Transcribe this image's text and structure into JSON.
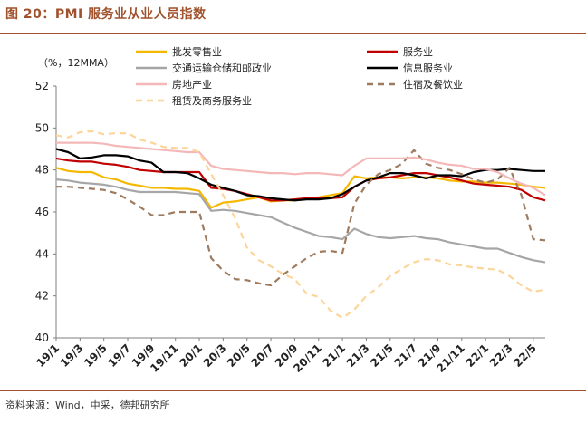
{
  "title": "图 20：PMI 服务业从业人员指数",
  "source": "资料来源：Wind，中采，德邦研究所",
  "chart_data": {
    "type": "line",
    "unit_label": "（%，12MMA）",
    "ylim": [
      40,
      52
    ],
    "yticks": [
      40,
      42,
      44,
      46,
      48,
      50,
      52
    ],
    "x_tick_labels": [
      "19/1",
      "19/3",
      "19/5",
      "19/7",
      "19/9",
      "19/11",
      "20/1",
      "20/3",
      "20/5",
      "20/7",
      "20/9",
      "20/11",
      "21/1",
      "21/3",
      "21/5",
      "21/7",
      "21/9",
      "21/11",
      "22/1",
      "22/3",
      "22/5"
    ],
    "x": [
      "19/1",
      "19/2",
      "19/3",
      "19/4",
      "19/5",
      "19/6",
      "19/7",
      "19/8",
      "19/9",
      "19/10",
      "19/11",
      "19/12",
      "20/1",
      "20/2",
      "20/3",
      "20/4",
      "20/5",
      "20/6",
      "20/7",
      "20/8",
      "20/9",
      "20/10",
      "20/11",
      "20/12",
      "21/1",
      "21/2",
      "21/3",
      "21/4",
      "21/5",
      "21/6",
      "21/7",
      "21/8",
      "21/9",
      "21/10",
      "21/11",
      "21/12",
      "22/1",
      "22/2",
      "22/3",
      "22/4",
      "22/5",
      "22/6"
    ],
    "series": [
      {
        "name": "批发零售业",
        "color": "#f5b800",
        "dash": "solid",
        "values": [
          48.1,
          47.95,
          47.9,
          47.9,
          47.65,
          47.55,
          47.35,
          47.25,
          47.15,
          47.15,
          47.1,
          47.1,
          47.0,
          46.2,
          46.45,
          46.5,
          46.6,
          46.7,
          46.5,
          46.55,
          46.55,
          46.65,
          46.7,
          46.8,
          46.9,
          47.7,
          47.6,
          47.65,
          47.65,
          47.6,
          47.65,
          47.65,
          47.6,
          47.5,
          47.45,
          47.45,
          47.4,
          47.4,
          47.35,
          47.3,
          47.2,
          47.15
        ]
      },
      {
        "name": "服务业",
        "color": "#c00000",
        "dash": "solid",
        "values": [
          48.55,
          48.45,
          48.4,
          48.4,
          48.3,
          48.25,
          48.15,
          48.0,
          47.95,
          47.9,
          47.9,
          47.9,
          47.9,
          47.15,
          47.1,
          47.0,
          46.85,
          46.7,
          46.55,
          46.55,
          46.6,
          46.65,
          46.65,
          46.65,
          46.7,
          47.2,
          47.5,
          47.6,
          47.65,
          47.75,
          47.85,
          47.85,
          47.75,
          47.65,
          47.5,
          47.35,
          47.3,
          47.25,
          47.2,
          47.05,
          46.7,
          46.55
        ]
      },
      {
        "name": "交通运输仓储和邮政业",
        "color": "#a6a6a6",
        "dash": "solid",
        "values": [
          47.55,
          47.5,
          47.4,
          47.35,
          47.3,
          47.2,
          47.05,
          46.95,
          46.95,
          46.95,
          46.95,
          46.9,
          46.85,
          46.05,
          46.1,
          46.05,
          45.95,
          45.85,
          45.75,
          45.5,
          45.25,
          45.05,
          44.85,
          44.8,
          44.7,
          45.2,
          44.95,
          44.8,
          44.75,
          44.8,
          44.85,
          44.75,
          44.7,
          44.55,
          44.45,
          44.35,
          44.25,
          44.25,
          44.05,
          43.85,
          43.7,
          43.6
        ]
      },
      {
        "name": "信息服务业",
        "color": "#000000",
        "dash": "solid",
        "values": [
          49.0,
          48.85,
          48.55,
          48.6,
          48.7,
          48.7,
          48.65,
          48.45,
          48.35,
          47.9,
          47.9,
          47.85,
          47.6,
          47.3,
          47.15,
          47.0,
          46.8,
          46.75,
          46.65,
          46.6,
          46.55,
          46.6,
          46.6,
          46.65,
          46.85,
          47.2,
          47.5,
          47.65,
          47.85,
          47.85,
          47.75,
          47.6,
          47.75,
          47.75,
          47.7,
          47.9,
          48.0,
          48.0,
          48.05,
          48.0,
          47.95,
          47.95
        ]
      },
      {
        "name": "住宿及餐饮业",
        "color": "#9e7b5f",
        "dash": "dashed",
        "values": [
          47.2,
          47.2,
          47.15,
          47.1,
          47.05,
          46.9,
          46.6,
          46.25,
          45.85,
          45.85,
          46.0,
          46.0,
          46.0,
          43.8,
          43.2,
          42.8,
          42.75,
          42.6,
          42.5,
          43.0,
          43.4,
          43.8,
          44.1,
          44.15,
          44.05,
          46.4,
          47.3,
          47.8,
          48.0,
          48.3,
          48.95,
          48.3,
          48.1,
          48.0,
          47.8,
          47.55,
          47.4,
          47.55,
          48.1,
          46.8,
          44.7,
          44.65
        ]
      },
      {
        "name": "房地产业",
        "color": "#f4b8b8",
        "dash": "solid",
        "values": [
          49.3,
          49.3,
          49.3,
          49.3,
          49.25,
          49.15,
          49.1,
          49.05,
          49.0,
          48.95,
          48.9,
          48.85,
          48.85,
          48.2,
          48.05,
          48.0,
          47.95,
          47.9,
          47.85,
          47.85,
          47.8,
          47.85,
          47.85,
          47.8,
          47.75,
          48.2,
          48.55,
          48.55,
          48.55,
          48.55,
          48.6,
          48.5,
          48.35,
          48.25,
          48.2,
          48.05,
          48.05,
          47.9,
          47.6,
          47.35,
          47.15,
          46.8
        ]
      },
      {
        "name": "租赁及商务服务业",
        "color": "#fcd59b",
        "dash": "dashed",
        "values": [
          49.65,
          49.55,
          49.8,
          49.85,
          49.7,
          49.75,
          49.75,
          49.45,
          49.3,
          49.1,
          49.05,
          49.05,
          48.85,
          47.8,
          46.8,
          45.7,
          44.3,
          43.7,
          43.4,
          43.05,
          42.8,
          42.1,
          41.95,
          41.3,
          40.95,
          41.35,
          42.0,
          42.4,
          42.95,
          43.3,
          43.6,
          43.75,
          43.7,
          43.5,
          43.45,
          43.35,
          43.3,
          43.25,
          42.95,
          42.5,
          42.2,
          42.3
        ]
      }
    ]
  }
}
